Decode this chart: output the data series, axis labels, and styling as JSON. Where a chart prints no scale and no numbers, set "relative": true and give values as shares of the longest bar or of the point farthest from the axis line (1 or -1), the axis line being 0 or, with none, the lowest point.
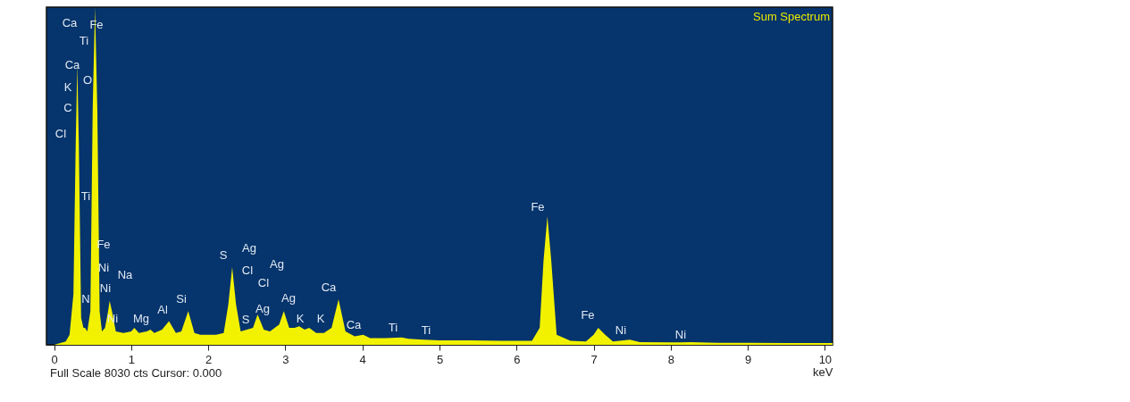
{
  "chart_data": {
    "type": "area",
    "title": "Sum Spectrum",
    "xlabel": "keV",
    "relative": true,
    "xlim": [
      -0.1,
      10.1
    ],
    "xticks": [
      0,
      1,
      2,
      3,
      4,
      5,
      6,
      7,
      8,
      9,
      10
    ],
    "grid": false,
    "series": [
      {
        "color": "#f2f200",
        "x": [
          0.0,
          0.15,
          0.2,
          0.25,
          0.28,
          0.3,
          0.32,
          0.35,
          0.38,
          0.4,
          0.43,
          0.47,
          0.5,
          0.53,
          0.56,
          0.59,
          0.62,
          0.66,
          0.7,
          0.72,
          0.75,
          0.8,
          0.9,
          1.0,
          1.04,
          1.1,
          1.2,
          1.25,
          1.3,
          1.4,
          1.49,
          1.58,
          1.65,
          1.74,
          1.82,
          1.9,
          2.0,
          2.1,
          2.2,
          2.26,
          2.31,
          2.36,
          2.42,
          2.5,
          2.58,
          2.64,
          2.72,
          2.8,
          2.92,
          2.98,
          3.05,
          3.12,
          3.18,
          3.25,
          3.31,
          3.4,
          3.5,
          3.6,
          3.69,
          3.78,
          3.9,
          4.01,
          4.1,
          4.3,
          4.51,
          4.6,
          4.8,
          5.0,
          5.4,
          5.8,
          6.2,
          6.3,
          6.35,
          6.4,
          6.45,
          6.52,
          6.7,
          6.9,
          7.0,
          7.06,
          7.15,
          7.25,
          7.47,
          7.6,
          8.0,
          8.26,
          8.6,
          9.0,
          9.5,
          10.0,
          10.1
        ],
        "values": [
          0,
          0.01,
          0.03,
          0.15,
          0.6,
          0.83,
          0.6,
          0.08,
          0.05,
          0.05,
          0.04,
          0.1,
          0.7,
          1.0,
          0.7,
          0.1,
          0.04,
          0.05,
          0.1,
          0.13,
          0.1,
          0.04,
          0.035,
          0.04,
          0.05,
          0.035,
          0.04,
          0.045,
          0.035,
          0.045,
          0.07,
          0.035,
          0.04,
          0.1,
          0.035,
          0.03,
          0.03,
          0.03,
          0.035,
          0.12,
          0.23,
          0.12,
          0.04,
          0.045,
          0.05,
          0.09,
          0.045,
          0.04,
          0.06,
          0.1,
          0.05,
          0.05,
          0.055,
          0.045,
          0.05,
          0.035,
          0.035,
          0.05,
          0.135,
          0.04,
          0.025,
          0.03,
          0.02,
          0.02,
          0.022,
          0.018,
          0.015,
          0.013,
          0.013,
          0.012,
          0.012,
          0.05,
          0.25,
          0.38,
          0.25,
          0.03,
          0.012,
          0.01,
          0.03,
          0.05,
          0.03,
          0.01,
          0.015,
          0.008,
          0.007,
          0.008,
          0.006,
          0.006,
          0.005,
          0.005,
          0.005
        ]
      }
    ],
    "annotations": [
      "Ca",
      "Fe",
      "Ti",
      "Ca",
      "K",
      "O",
      "C",
      "Cl",
      "Ti",
      "Fe",
      "Ni",
      "Na",
      "Ni",
      "N",
      "Ni",
      "Mg",
      "Al",
      "Si",
      "S",
      "Ag",
      "Cl",
      "Ag",
      "Cl",
      "S",
      "Ag",
      "Ag",
      "K",
      "K",
      "Ca",
      "Ca",
      "Ti",
      "Ti",
      "Fe",
      "Fe",
      "Ni",
      "Ni",
      "Full Scale 8030 cts Cursor: 0.000"
    ]
  }
}
